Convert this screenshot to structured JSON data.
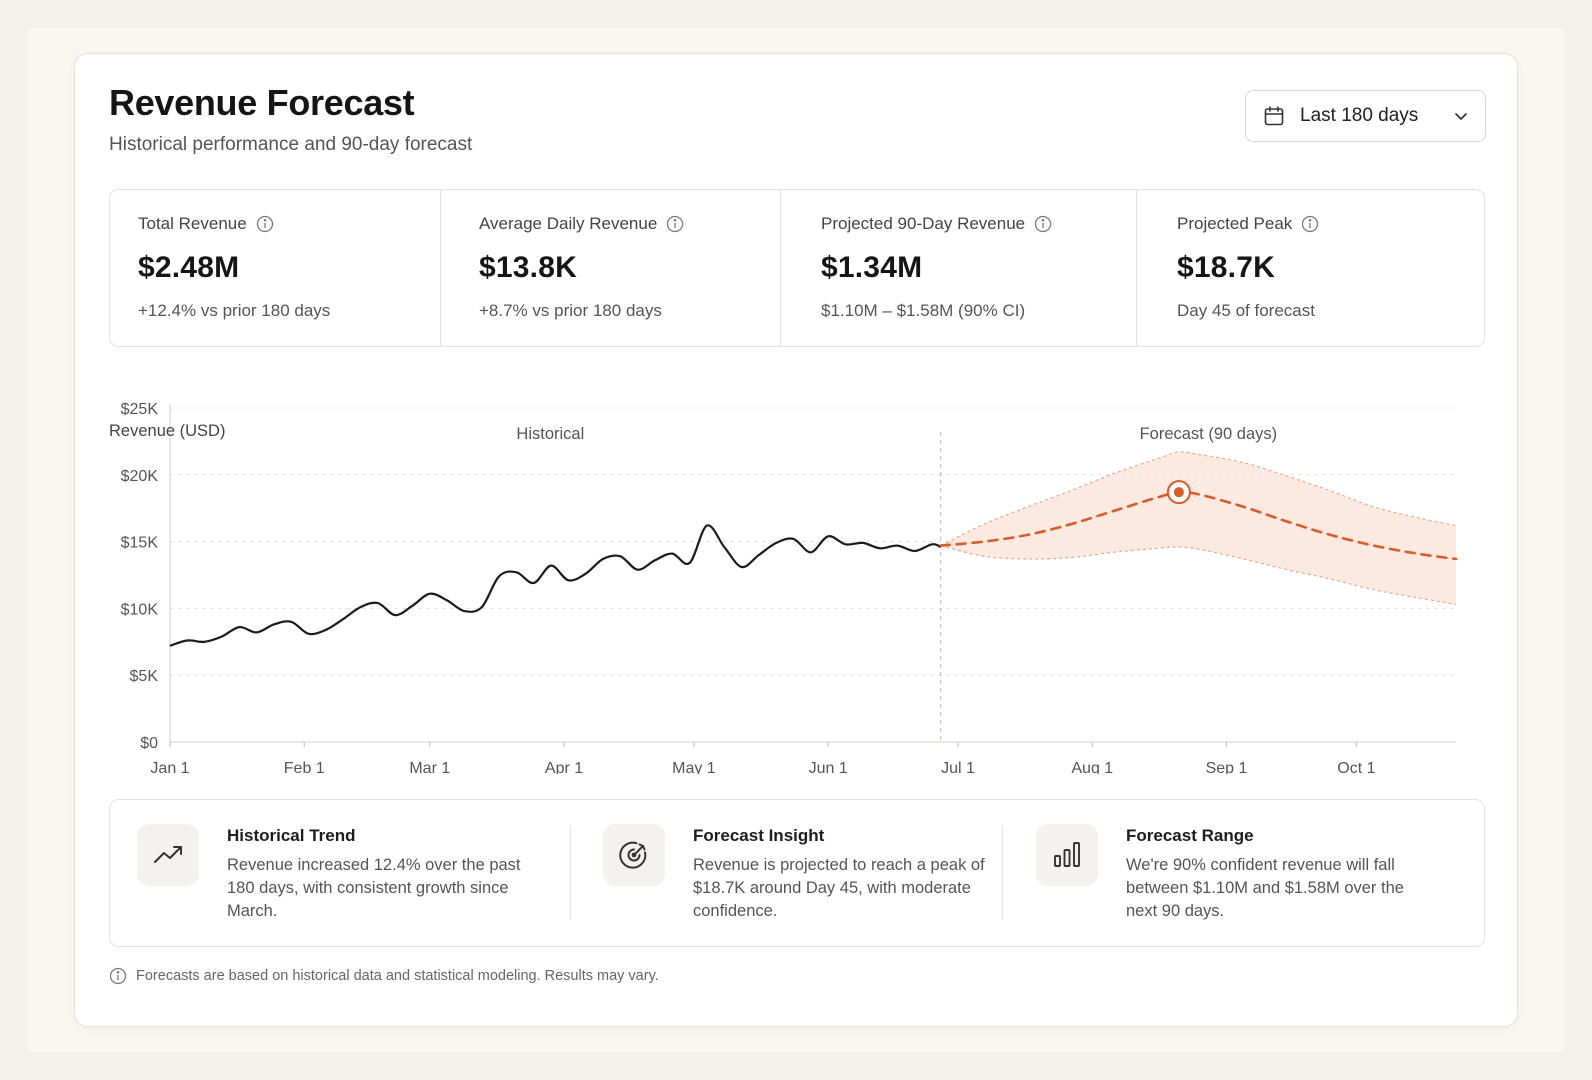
{
  "header": {
    "title": "Revenue Forecast",
    "subtitle": "Historical performance and 90-day forecast",
    "range_select": {
      "icon": "calendar-icon",
      "value": "Last 180 days"
    }
  },
  "kpis": [
    {
      "label": "Total Revenue",
      "value": "$2.48M",
      "sub": "+12.4% vs prior 180 days"
    },
    {
      "label": "Average Daily Revenue",
      "value": "$13.8K",
      "sub": "+8.7% vs prior 180 days"
    },
    {
      "label": "Projected 90-Day Revenue",
      "value": "$1.34M",
      "sub": "$1.10M – $1.58M (90% CI)"
    },
    {
      "label": "Projected Peak",
      "value": "$18.7K",
      "sub": "Day 45 of forecast"
    }
  ],
  "chart_data": {
    "type": "line",
    "ylabel": "Revenue (USD)",
    "ylim": [
      0,
      25000
    ],
    "y_ticks": [
      "$0",
      "$5K",
      "$10K",
      "$15K",
      "$20K",
      "$25K"
    ],
    "y_tick_values": [
      0,
      5000,
      10000,
      15000,
      20000,
      25000
    ],
    "x_ticks": [
      "Jan 1",
      "Feb 1",
      "Mar 1",
      "Apr 1",
      "May 1",
      "Jun 1",
      "Jul 1",
      "Aug 1",
      "Sep 1",
      "Oct 1"
    ],
    "x_tick_dates": [
      "2024-01-01",
      "2024-02-01",
      "2024-03-01",
      "2024-04-01",
      "2024-05-01",
      "2024-06-01",
      "2024-07-01",
      "2024-08-01",
      "2024-09-01",
      "2024-10-01"
    ],
    "xlim": [
      "2024-01-01",
      "2024-10-24"
    ],
    "section_labels": {
      "historical": "Historical",
      "forecast": "Forecast (90 days)"
    },
    "forecast_start": "2024-06-27",
    "grid": true,
    "colors": {
      "historical": "#1b1b1b",
      "forecast": "#d95b2a",
      "band": "#fbe1d5",
      "band_edge": "#e7a78a"
    },
    "series": [
      {
        "name": "Historical",
        "style": "solid",
        "x": [
          "2024-01-01",
          "2024-01-05",
          "2024-01-09",
          "2024-01-13",
          "2024-01-17",
          "2024-01-21",
          "2024-01-25",
          "2024-01-29",
          "2024-02-02",
          "2024-02-06",
          "2024-02-10",
          "2024-02-14",
          "2024-02-18",
          "2024-02-22",
          "2024-02-26",
          "2024-03-01",
          "2024-03-05",
          "2024-03-09",
          "2024-03-13",
          "2024-03-17",
          "2024-03-21",
          "2024-03-25",
          "2024-03-29",
          "2024-04-02",
          "2024-04-06",
          "2024-04-10",
          "2024-04-14",
          "2024-04-18",
          "2024-04-22",
          "2024-04-26",
          "2024-04-30",
          "2024-05-04",
          "2024-05-08",
          "2024-05-12",
          "2024-05-16",
          "2024-05-20",
          "2024-05-24",
          "2024-05-28",
          "2024-06-01",
          "2024-06-05",
          "2024-06-09",
          "2024-06-13",
          "2024-06-17",
          "2024-06-21",
          "2024-06-25",
          "2024-06-27"
        ],
        "y": [
          7200,
          7600,
          7500,
          7900,
          8600,
          8200,
          8800,
          9000,
          8100,
          8400,
          9200,
          10100,
          10400,
          9500,
          10200,
          11100,
          10600,
          9800,
          10100,
          12400,
          12700,
          11900,
          13200,
          12100,
          12600,
          13700,
          13900,
          12900,
          13600,
          14100,
          13400,
          16200,
          14600,
          13100,
          14000,
          14900,
          15200,
          14200,
          15400,
          14800,
          14900,
          14500,
          14700,
          14300,
          14800,
          14600
        ]
      },
      {
        "name": "Forecast (90 days)",
        "style": "dashed",
        "x": [
          "2024-06-27",
          "2024-07-07",
          "2024-07-17",
          "2024-07-27",
          "2024-08-06",
          "2024-08-16",
          "2024-08-21",
          "2024-08-26",
          "2024-09-05",
          "2024-09-15",
          "2024-09-25",
          "2024-10-05",
          "2024-10-15",
          "2024-10-24"
        ],
        "y": [
          14700,
          15000,
          15500,
          16300,
          17300,
          18300,
          18700,
          18500,
          17600,
          16500,
          15500,
          14700,
          14100,
          13700
        ],
        "lower": [
          14700,
          13900,
          13700,
          13800,
          14200,
          14500,
          14600,
          14400,
          13700,
          12900,
          12200,
          11400,
          10800,
          10300
        ],
        "upper": [
          14700,
          16300,
          17600,
          18800,
          20100,
          21200,
          21700,
          21500,
          20900,
          19900,
          18800,
          17600,
          16800,
          16200
        ]
      }
    ],
    "peak": {
      "x": "2024-08-21",
      "y": 18700
    }
  },
  "insights": [
    {
      "icon": "trend-up-icon",
      "title": "Historical Trend",
      "text": "Revenue increased 12.4% over the past 180 days, with consistent growth since March."
    },
    {
      "icon": "target-icon",
      "title": "Forecast Insight",
      "text": "Revenue is projected to reach a peak of $18.7K around Day 45, with moderate confidence."
    },
    {
      "icon": "bar-chart-icon",
      "title": "Forecast Range",
      "text": "We're 90% confident revenue will fall between $1.10M and $1.58M over the next 90 days."
    }
  ],
  "footnote": "Forecasts are based on historical data and statistical modeling. Results may vary."
}
